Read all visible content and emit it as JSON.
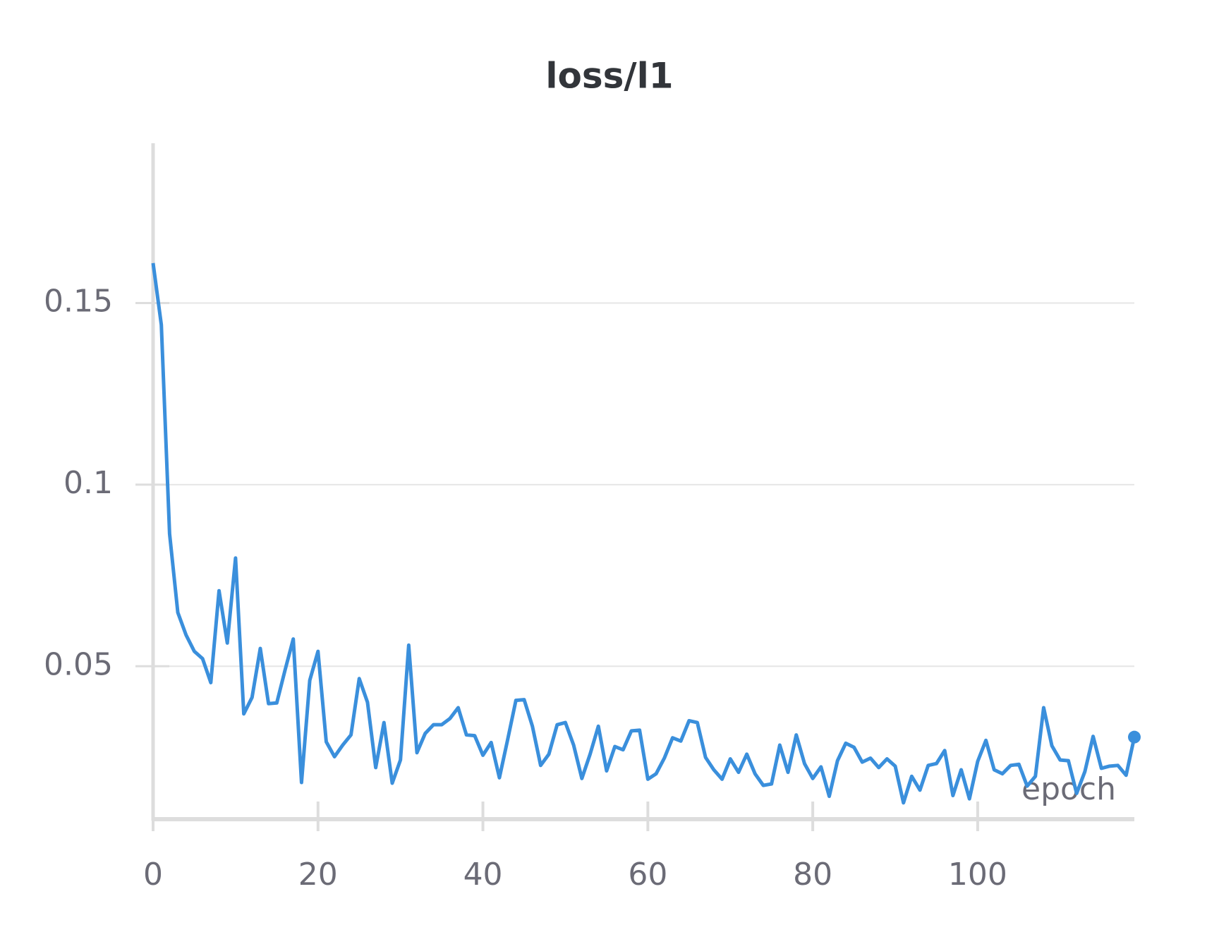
{
  "chart_data": {
    "type": "line",
    "title": "loss/l1",
    "x_label": "epoch",
    "x": [
      0,
      1,
      2,
      3,
      4,
      5,
      6,
      7,
      8,
      9,
      10,
      11,
      12,
      13,
      14,
      15,
      16,
      17,
      18,
      19,
      20,
      21,
      22,
      23,
      24,
      25,
      26,
      27,
      28,
      29,
      30,
      31,
      32,
      33,
      34,
      35,
      36,
      37,
      38,
      39,
      40,
      41,
      42,
      43,
      44,
      45,
      46,
      47,
      48,
      49,
      50,
      51,
      52,
      53,
      54,
      55,
      56,
      57,
      58,
      59,
      60,
      61,
      62,
      63,
      64,
      65,
      66,
      67,
      68,
      69,
      70,
      71,
      72,
      73,
      74,
      75,
      76,
      77,
      78,
      79,
      80,
      81,
      82,
      83,
      84,
      85,
      86,
      87,
      88,
      89,
      90,
      91,
      92,
      93,
      94,
      95,
      96,
      97,
      98,
      99,
      100,
      101,
      102,
      103,
      104,
      105,
      106,
      107,
      108,
      109,
      110,
      111,
      112,
      113,
      114,
      115,
      116,
      117,
      118,
      119
    ],
    "series": [
      {
        "name": "loss/l1",
        "color": "#3a8fdc",
        "values": [
          0.161,
          0.144,
          0.0865,
          0.0648,
          0.0586,
          0.0541,
          0.0521,
          0.0455,
          0.0708,
          0.0564,
          0.0798,
          0.0369,
          0.0414,
          0.0549,
          0.0397,
          0.0399,
          0.0489,
          0.0575,
          0.018,
          0.0461,
          0.0541,
          0.0292,
          0.0251,
          0.0283,
          0.0311,
          0.0466,
          0.0401,
          0.0221,
          0.0345,
          0.0178,
          0.0242,
          0.0558,
          0.0262,
          0.0315,
          0.0339,
          0.0339,
          0.0356,
          0.0386,
          0.0311,
          0.0309,
          0.0255,
          0.029,
          0.0193,
          0.0298,
          0.0406,
          0.0408,
          0.0335,
          0.0227,
          0.0258,
          0.0339,
          0.0345,
          0.0283,
          0.0191,
          0.0258,
          0.0335,
          0.0212,
          0.0279,
          0.027,
          0.0322,
          0.0324,
          0.0189,
          0.0204,
          0.0247,
          0.0303,
          0.0294,
          0.035,
          0.0345,
          0.0249,
          0.0215,
          0.0189,
          0.0245,
          0.0208,
          0.0258,
          0.0204,
          0.0172,
          0.0176,
          0.0283,
          0.0208,
          0.0311,
          0.0232,
          0.0191,
          0.0223,
          0.0142,
          0.024,
          0.0288,
          0.0277,
          0.0236,
          0.0247,
          0.0221,
          0.0245,
          0.0225,
          0.0124,
          0.0197,
          0.0159,
          0.0227,
          0.0232,
          0.0268,
          0.0144,
          0.0215,
          0.0135,
          0.0238,
          0.0296,
          0.0215,
          0.0204,
          0.0227,
          0.023,
          0.017,
          0.0197,
          0.0386,
          0.0281,
          0.0242,
          0.024,
          0.015,
          0.021,
          0.0307,
          0.0219,
          0.0225,
          0.0227,
          0.02,
          0.0305
        ]
      }
    ],
    "xlim": [
      0,
      119
    ],
    "xticks": [
      0,
      20,
      40,
      60,
      80,
      100
    ],
    "ylim": [
      0.0079,
      0.194
    ],
    "yticks": [
      0.05,
      0.1,
      0.15
    ],
    "grid": true
  }
}
